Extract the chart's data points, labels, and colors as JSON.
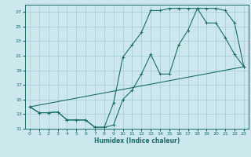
{
  "title": "",
  "xlabel": "Humidex (Indice chaleur)",
  "bg_color": "#cce8ec",
  "grid_color": "#aacfd4",
  "line_color": "#1a6e65",
  "xlim": [
    -0.5,
    23.5
  ],
  "ylim": [
    11,
    28
  ],
  "yticks": [
    11,
    13,
    15,
    17,
    19,
    21,
    23,
    25,
    27
  ],
  "xticks": [
    0,
    1,
    2,
    3,
    4,
    5,
    6,
    7,
    8,
    9,
    10,
    11,
    12,
    13,
    14,
    15,
    16,
    17,
    18,
    19,
    20,
    21,
    22,
    23
  ],
  "line1_x": [
    0,
    1,
    2,
    3,
    4,
    5,
    6,
    7,
    8,
    9,
    10,
    11,
    12,
    13,
    14,
    15,
    16,
    17,
    18,
    19,
    20,
    21,
    22,
    23
  ],
  "line1_y": [
    14,
    13.2,
    13.2,
    13.3,
    12.2,
    12.2,
    12.2,
    11.2,
    11.2,
    11.5,
    15.0,
    16.3,
    18.5,
    21.2,
    18.5,
    18.5,
    22.5,
    24.5,
    27.5,
    27.5,
    27.5,
    27.2,
    25.5,
    19.5
  ],
  "line2_x": [
    0,
    1,
    2,
    3,
    4,
    5,
    6,
    7,
    8,
    9,
    10,
    11,
    12,
    13,
    14,
    15,
    16,
    17,
    18,
    19,
    20,
    21,
    22,
    23
  ],
  "line2_y": [
    14,
    13.2,
    13.2,
    13.3,
    12.2,
    12.2,
    12.2,
    11.2,
    11.2,
    14.5,
    20.8,
    22.5,
    24.2,
    27.2,
    27.2,
    27.5,
    27.5,
    27.5,
    27.5,
    25.5,
    25.5,
    23.5,
    21.2,
    19.5
  ],
  "line3_x": [
    0,
    23
  ],
  "line3_y": [
    14,
    19.5
  ]
}
